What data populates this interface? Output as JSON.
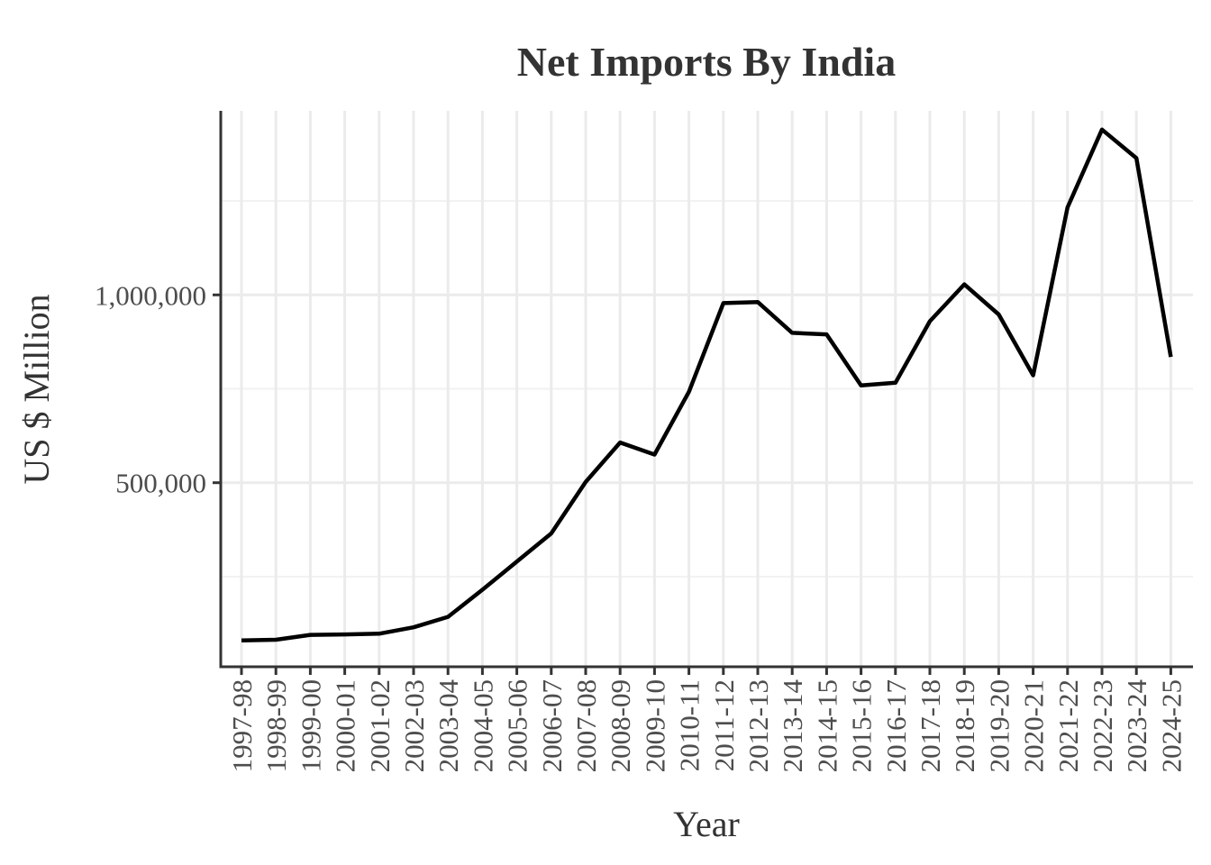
{
  "chart_data": {
    "type": "line",
    "title": "Net Imports By India",
    "xlabel": "Year",
    "ylabel": "US $ Million",
    "categories": [
      "1997-98",
      "1998-99",
      "1999-00",
      "2000-01",
      "2001-02",
      "2002-03",
      "2003-04",
      "2004-05",
      "2005-06",
      "2006-07",
      "2007-08",
      "2008-09",
      "2009-10",
      "2010-11",
      "2011-12",
      "2012-13",
      "2013-14",
      "2014-15",
      "2015-16",
      "2016-17",
      "2017-18",
      "2018-19",
      "2019-20",
      "2020-21",
      "2021-22",
      "2022-23",
      "2023-24",
      "2024-25"
    ],
    "series": [
      {
        "values": [
          80000,
          82000,
          95000,
          96000,
          98000,
          115000,
          143000,
          215000,
          290000,
          365000,
          502000,
          607000,
          575000,
          742000,
          978000,
          981000,
          899000,
          895000,
          759000,
          766000,
          930000,
          1028000,
          948000,
          786000,
          1233000,
          1440000,
          1364000,
          835000
        ],
        "color": "#000000"
      }
    ],
    "ylim": [
      10000,
      1490000
    ],
    "yticks": [
      500000,
      1000000
    ],
    "ytick_labels": [
      "500,000",
      "1,000,000"
    ],
    "grid": true,
    "legend": "none"
  }
}
